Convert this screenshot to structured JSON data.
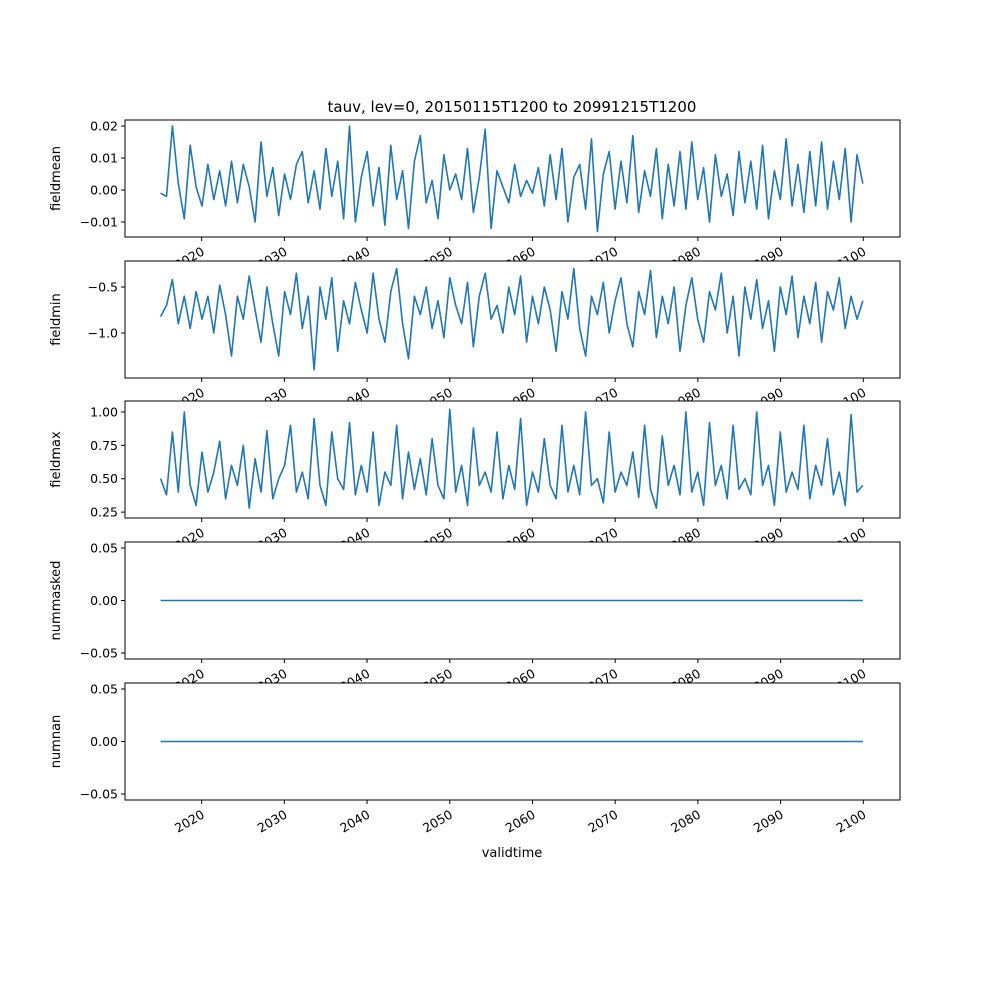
{
  "chart_data": {
    "type": "line",
    "title": "tauv, lev=0, 20150115T1200 to 20991215T1200",
    "xlabel": "validtime",
    "x_start": 2015.04,
    "x_end": 2099.96,
    "xlim": [
      2010.73,
      2104.44
    ],
    "xticks": [
      2020,
      2030,
      2040,
      2050,
      2060,
      2070,
      2080,
      2090,
      2100
    ],
    "xtick_labels": [
      "2020",
      "2030",
      "2040",
      "2050",
      "2060",
      "2070",
      "2080",
      "2090",
      "2100"
    ],
    "line_color": "#1f77b4",
    "grid": false,
    "subplots": [
      {
        "ylabel": "fieldmean",
        "ylim": [
          -0.0147,
          0.0219
        ],
        "yticks": [
          -0.01,
          0.0,
          0.01,
          0.02
        ],
        "ytick_labels": [
          "−0.01",
          "0.00",
          "0.01",
          "0.02"
        ],
        "values": [
          -0.001,
          -0.002,
          0.02,
          0.002,
          -0.009,
          0.014,
          0.001,
          -0.005,
          0.008,
          -0.003,
          0.006,
          -0.005,
          0.009,
          -0.004,
          0.008,
          0.001,
          -0.01,
          0.015,
          -0.002,
          0.007,
          -0.008,
          0.005,
          -0.003,
          0.008,
          0.012,
          -0.004,
          0.006,
          -0.006,
          0.013,
          -0.002,
          0.009,
          -0.009,
          0.02,
          -0.01,
          0.004,
          0.012,
          -0.005,
          0.007,
          -0.011,
          0.014,
          -0.003,
          0.006,
          -0.012,
          0.009,
          0.017,
          -0.004,
          0.003,
          -0.009,
          0.011,
          0.0,
          0.005,
          -0.003,
          0.013,
          -0.007,
          0.004,
          0.019,
          -0.012,
          0.006,
          0.001,
          -0.004,
          0.008,
          -0.002,
          0.003,
          -0.001,
          0.007,
          -0.005,
          0.011,
          -0.003,
          0.013,
          -0.01,
          0.004,
          0.008,
          -0.006,
          0.016,
          -0.013,
          0.005,
          0.012,
          -0.006,
          0.009,
          -0.004,
          0.017,
          -0.007,
          0.006,
          -0.002,
          0.013,
          -0.009,
          0.008,
          -0.005,
          0.012,
          -0.006,
          0.015,
          -0.003,
          0.007,
          -0.01,
          0.011,
          -0.002,
          0.005,
          -0.008,
          0.012,
          -0.004,
          0.009,
          -0.006,
          0.014,
          -0.009,
          0.006,
          -0.003,
          0.016,
          -0.005,
          0.008,
          -0.007,
          0.012,
          -0.005,
          0.015,
          -0.006,
          0.009,
          -0.003,
          0.013,
          -0.01,
          0.011,
          0.002
        ]
      },
      {
        "ylabel": "fieldmin",
        "ylim": [
          -1.489,
          -0.217
        ],
        "yticks": [
          -1.0,
          -0.5
        ],
        "ytick_labels": [
          "−1.0",
          "−0.5"
        ],
        "values": [
          -0.82,
          -0.7,
          -0.42,
          -0.9,
          -0.6,
          -0.95,
          -0.55,
          -0.85,
          -0.6,
          -1.0,
          -0.48,
          -0.8,
          -1.25,
          -0.6,
          -0.85,
          -0.38,
          -0.75,
          -1.1,
          -0.5,
          -0.9,
          -1.25,
          -0.55,
          -0.8,
          -0.35,
          -0.95,
          -0.6,
          -1.4,
          -0.5,
          -0.85,
          -0.4,
          -1.2,
          -0.65,
          -0.9,
          -0.45,
          -0.75,
          -1.0,
          -0.35,
          -0.85,
          -1.1,
          -0.55,
          -0.3,
          -0.9,
          -1.28,
          -0.6,
          -0.8,
          -0.5,
          -0.95,
          -0.65,
          -1.05,
          -0.4,
          -0.7,
          -0.9,
          -0.45,
          -1.15,
          -0.6,
          -0.35,
          -0.85,
          -0.7,
          -1.0,
          -0.5,
          -0.8,
          -0.38,
          -1.1,
          -0.6,
          -0.9,
          -0.5,
          -0.75,
          -1.2,
          -0.55,
          -0.85,
          -0.3,
          -0.95,
          -1.25,
          -0.6,
          -0.8,
          -0.45,
          -1.0,
          -0.65,
          -0.4,
          -0.9,
          -1.15,
          -0.55,
          -0.8,
          -0.32,
          -1.05,
          -0.6,
          -0.9,
          -0.5,
          -1.2,
          -0.7,
          -0.4,
          -0.85,
          -1.1,
          -0.55,
          -0.75,
          -0.35,
          -1.0,
          -0.6,
          -1.25,
          -0.5,
          -0.85,
          -0.42,
          -0.95,
          -0.65,
          -1.2,
          -0.5,
          -0.8,
          -0.38,
          -1.05,
          -0.6,
          -0.9,
          -0.45,
          -1.1,
          -0.55,
          -0.75,
          -0.4,
          -0.95,
          -0.6,
          -0.85,
          -0.65
        ]
      },
      {
        "ylabel": "fieldmax",
        "ylim": [
          0.206,
          1.082
        ],
        "yticks": [
          0.25,
          0.5,
          0.75,
          1.0
        ],
        "ytick_labels": [
          "0.25",
          "0.50",
          "0.75",
          "1.00"
        ],
        "values": [
          0.5,
          0.38,
          0.85,
          0.4,
          1.0,
          0.45,
          0.3,
          0.7,
          0.4,
          0.55,
          0.78,
          0.35,
          0.6,
          0.45,
          0.75,
          0.28,
          0.65,
          0.4,
          0.86,
          0.35,
          0.5,
          0.6,
          0.9,
          0.4,
          0.55,
          0.35,
          0.95,
          0.45,
          0.3,
          0.85,
          0.5,
          0.42,
          0.92,
          0.38,
          0.6,
          0.4,
          0.85,
          0.3,
          0.55,
          0.45,
          0.9,
          0.35,
          0.7,
          0.42,
          0.65,
          0.38,
          0.8,
          0.45,
          0.35,
          1.02,
          0.4,
          0.6,
          0.3,
          0.88,
          0.45,
          0.55,
          0.4,
          0.85,
          0.35,
          0.6,
          0.42,
          0.95,
          0.3,
          0.55,
          0.4,
          0.8,
          0.45,
          0.35,
          0.9,
          0.4,
          0.6,
          0.38,
          1.0,
          0.45,
          0.5,
          0.32,
          0.85,
          0.4,
          0.55,
          0.45,
          0.7,
          0.36,
          0.9,
          0.42,
          0.28,
          0.82,
          0.45,
          0.6,
          0.38,
          1.0,
          0.4,
          0.55,
          0.3,
          0.92,
          0.45,
          0.6,
          0.35,
          0.9,
          0.42,
          0.5,
          0.38,
          1.0,
          0.45,
          0.6,
          0.3,
          0.85,
          0.4,
          0.55,
          0.42,
          0.9,
          0.35,
          0.6,
          0.45,
          0.8,
          0.38,
          0.55,
          0.3,
          0.98,
          0.4,
          0.45
        ]
      },
      {
        "ylabel": "nummasked",
        "ylim": [
          -0.0557,
          0.0557
        ],
        "yticks": [
          -0.05,
          0.0,
          0.05
        ],
        "ytick_labels": [
          "−0.05",
          "0.00",
          "0.05"
        ],
        "values": [
          0,
          0
        ]
      },
      {
        "ylabel": "numnan",
        "ylim": [
          -0.0557,
          0.0557
        ],
        "yticks": [
          -0.05,
          0.0,
          0.05
        ],
        "ytick_labels": [
          "−0.05",
          "0.00",
          "0.05"
        ],
        "values": [
          0,
          0
        ]
      }
    ]
  }
}
